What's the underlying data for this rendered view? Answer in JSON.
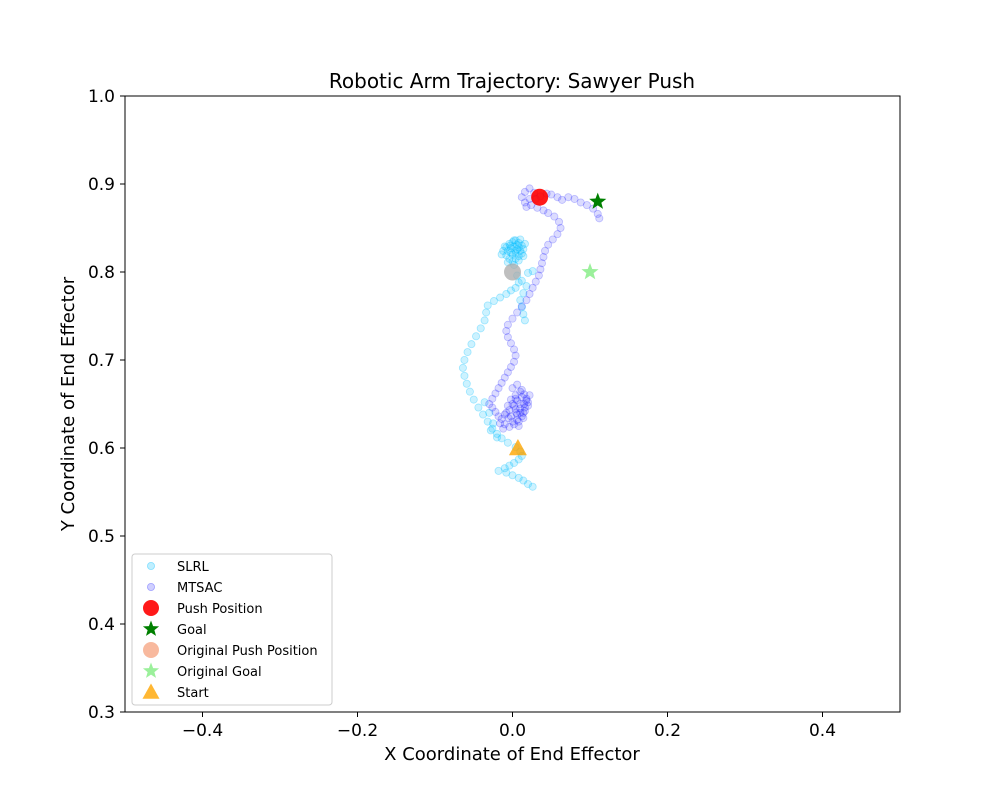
{
  "chart_data": {
    "type": "scatter",
    "title": "Robotic Arm Trajectory: Sawyer Push",
    "xlabel": "X Coordinate of End Effector",
    "ylabel": "Y Coordinate of End Effector",
    "xlim": [
      -0.5,
      0.5
    ],
    "ylim": [
      0.3,
      1.0
    ],
    "xticks": [
      -0.4,
      -0.2,
      0.0,
      0.2,
      0.4
    ],
    "xtick_labels": [
      "−0.4",
      "−0.2",
      "0.0",
      "0.2",
      "0.4"
    ],
    "yticks": [
      0.3,
      0.4,
      0.5,
      0.6,
      0.7,
      0.8,
      0.9,
      1.0
    ],
    "ytick_labels": [
      "0.3",
      "0.4",
      "0.5",
      "0.6",
      "0.7",
      "0.8",
      "0.9",
      "1.0"
    ],
    "grid": false,
    "legend_position": "lower-left",
    "series": [
      {
        "name": "SLRL",
        "marker": "circle",
        "color": "#00bfff",
        "alpha": 0.2,
        "points": [
          [
            0.026,
            0.556
          ],
          [
            0.02,
            0.559
          ],
          [
            0.014,
            0.563
          ],
          [
            0.008,
            0.566
          ],
          [
            0.0,
            0.569
          ],
          [
            -0.008,
            0.572
          ],
          [
            -0.018,
            0.574
          ],
          [
            -0.01,
            0.577
          ],
          [
            -0.004,
            0.58
          ],
          [
            0.002,
            0.583
          ],
          [
            0.008,
            0.587
          ],
          [
            0.012,
            0.591
          ],
          [
            0.01,
            0.596
          ],
          [
            0.004,
            0.601
          ],
          [
            -0.006,
            0.606
          ],
          [
            -0.014,
            0.611
          ],
          [
            -0.02,
            0.616
          ],
          [
            -0.026,
            0.622
          ],
          [
            -0.032,
            0.63
          ],
          [
            -0.038,
            0.638
          ],
          [
            -0.044,
            0.646
          ],
          [
            -0.05,
            0.655
          ],
          [
            -0.055,
            0.664
          ],
          [
            -0.059,
            0.673
          ],
          [
            -0.062,
            0.682
          ],
          [
            -0.064,
            0.691
          ],
          [
            -0.062,
            0.7
          ],
          [
            -0.058,
            0.709
          ],
          [
            -0.053,
            0.718
          ],
          [
            -0.047,
            0.727
          ],
          [
            -0.041,
            0.736
          ],
          [
            -0.036,
            0.745
          ],
          [
            -0.034,
            0.754
          ],
          [
            -0.032,
            0.762
          ],
          [
            -0.024,
            0.767
          ],
          [
            -0.016,
            0.771
          ],
          [
            -0.008,
            0.775
          ],
          [
            -0.002,
            0.779
          ],
          [
            0.004,
            0.782
          ],
          [
            0.008,
            0.788
          ],
          [
            0.006,
            0.796
          ],
          [
            0.012,
            0.79
          ],
          [
            0.018,
            0.784
          ],
          [
            0.014,
            0.776
          ],
          [
            0.01,
            0.768
          ],
          [
            0.012,
            0.76
          ],
          [
            0.014,
            0.752
          ],
          [
            0.016,
            0.745
          ],
          [
            0.02,
            0.799
          ],
          [
            0.026,
            0.801
          ],
          [
            -0.012,
            0.824
          ],
          [
            -0.008,
            0.828
          ],
          [
            -0.004,
            0.832
          ],
          [
            0.0,
            0.834
          ],
          [
            0.004,
            0.836
          ],
          [
            0.008,
            0.833
          ],
          [
            0.012,
            0.83
          ],
          [
            0.014,
            0.826
          ],
          [
            0.012,
            0.821
          ],
          [
            0.008,
            0.818
          ],
          [
            0.004,
            0.815
          ],
          [
            0.0,
            0.812
          ],
          [
            -0.004,
            0.815
          ],
          [
            -0.008,
            0.819
          ],
          [
            -0.006,
            0.824
          ],
          [
            -0.002,
            0.827
          ],
          [
            0.002,
            0.829
          ],
          [
            0.006,
            0.826
          ],
          [
            0.004,
            0.821
          ],
          [
            0.0,
            0.82
          ],
          [
            -0.003,
            0.83
          ],
          [
            0.006,
            0.831
          ],
          [
            0.01,
            0.824
          ],
          [
            -0.01,
            0.829
          ],
          [
            0.002,
            0.836
          ],
          [
            0.016,
            0.832
          ],
          [
            0.01,
            0.837
          ],
          [
            -0.006,
            0.811
          ],
          [
            0.002,
            0.808
          ],
          [
            0.008,
            0.813
          ],
          [
            -0.014,
            0.82
          ],
          [
            0.014,
            0.818
          ],
          [
            0.004,
            0.824
          ],
          [
            -0.002,
            0.822
          ],
          [
            0.008,
            0.828
          ],
          [
            -0.025,
            0.628
          ],
          [
            -0.028,
            0.62
          ],
          [
            -0.02,
            0.612
          ],
          [
            -0.03,
            0.64
          ],
          [
            -0.036,
            0.652
          ]
        ]
      },
      {
        "name": "MTSAC",
        "marker": "circle",
        "color": "#0000ff",
        "alpha": 0.14,
        "points": [
          [
            0.005,
            0.64
          ],
          [
            0.01,
            0.645
          ],
          [
            0.015,
            0.65
          ],
          [
            0.018,
            0.656
          ],
          [
            0.015,
            0.661
          ],
          [
            0.01,
            0.664
          ],
          [
            0.004,
            0.66
          ],
          [
            -0.002,
            0.655
          ],
          [
            -0.006,
            0.648
          ],
          [
            -0.008,
            0.64
          ],
          [
            -0.005,
            0.634
          ],
          [
            0.0,
            0.63
          ],
          [
            0.006,
            0.632
          ],
          [
            0.012,
            0.636
          ],
          [
            0.016,
            0.642
          ],
          [
            0.02,
            0.648
          ],
          [
            0.018,
            0.654
          ],
          [
            0.012,
            0.658
          ],
          [
            0.006,
            0.654
          ],
          [
            0.002,
            0.648
          ],
          [
            -0.004,
            0.643
          ],
          [
            -0.01,
            0.638
          ],
          [
            -0.014,
            0.633
          ],
          [
            -0.01,
            0.627
          ],
          [
            -0.004,
            0.624
          ],
          [
            0.002,
            0.627
          ],
          [
            0.008,
            0.63
          ],
          [
            0.014,
            0.634
          ],
          [
            0.01,
            0.64
          ],
          [
            0.004,
            0.644
          ],
          [
            0.0,
            0.65
          ],
          [
            0.004,
            0.656
          ],
          [
            0.01,
            0.65
          ],
          [
            0.016,
            0.646
          ],
          [
            0.008,
            0.625
          ],
          [
            -0.012,
            0.622
          ],
          [
            -0.016,
            0.628
          ],
          [
            0.022,
            0.66
          ],
          [
            0.02,
            0.652
          ],
          [
            0.0,
            0.668
          ],
          [
            0.006,
            0.672
          ],
          [
            0.012,
            0.666
          ],
          [
            -0.002,
            0.636
          ],
          [
            0.006,
            0.638
          ],
          [
            0.014,
            0.64
          ],
          [
            -0.018,
            0.636
          ],
          [
            -0.022,
            0.641
          ],
          [
            -0.026,
            0.646
          ],
          [
            -0.03,
            0.65
          ],
          [
            -0.026,
            0.656
          ],
          [
            -0.022,
            0.662
          ],
          [
            -0.018,
            0.668
          ],
          [
            -0.014,
            0.674
          ],
          [
            -0.01,
            0.68
          ],
          [
            -0.006,
            0.686
          ],
          [
            -0.002,
            0.692
          ],
          [
            0.002,
            0.698
          ],
          [
            0.004,
            0.705
          ],
          [
            0.002,
            0.712
          ],
          [
            -0.002,
            0.719
          ],
          [
            -0.006,
            0.726
          ],
          [
            -0.008,
            0.733
          ],
          [
            -0.006,
            0.74
          ],
          [
            0.0,
            0.747
          ],
          [
            0.006,
            0.754
          ],
          [
            0.012,
            0.761
          ],
          [
            0.018,
            0.768
          ],
          [
            0.022,
            0.775
          ],
          [
            0.026,
            0.782
          ],
          [
            0.03,
            0.789
          ],
          [
            0.034,
            0.796
          ],
          [
            0.036,
            0.803
          ],
          [
            0.038,
            0.81
          ],
          [
            0.04,
            0.817
          ],
          [
            0.042,
            0.824
          ],
          [
            0.046,
            0.831
          ],
          [
            0.052,
            0.837
          ],
          [
            0.058,
            0.843
          ],
          [
            0.062,
            0.85
          ],
          [
            0.06,
            0.857
          ],
          [
            0.054,
            0.863
          ],
          [
            0.046,
            0.867
          ],
          [
            0.04,
            0.87
          ],
          [
            0.032,
            0.873
          ],
          [
            0.024,
            0.876
          ],
          [
            0.016,
            0.879
          ],
          [
            0.012,
            0.885
          ],
          [
            0.016,
            0.891
          ],
          [
            0.022,
            0.895
          ],
          [
            0.028,
            0.89
          ],
          [
            0.036,
            0.886
          ],
          [
            0.044,
            0.889
          ],
          [
            0.05,
            0.888
          ],
          [
            0.058,
            0.885
          ],
          [
            0.064,
            0.882
          ],
          [
            0.072,
            0.885
          ],
          [
            0.08,
            0.883
          ],
          [
            0.088,
            0.879
          ],
          [
            0.096,
            0.876
          ],
          [
            0.104,
            0.872
          ],
          [
            0.11,
            0.866
          ],
          [
            0.112,
            0.861
          ],
          [
            0.03,
            0.883
          ],
          [
            0.022,
            0.883
          ],
          [
            0.018,
            0.874
          ]
        ]
      }
    ],
    "markers": [
      {
        "name": "Push Position",
        "shape": "circle",
        "color": "#ff0000",
        "alpha": 0.9,
        "x": 0.035,
        "y": 0.885
      },
      {
        "name": "Goal",
        "shape": "star",
        "color": "#008000",
        "alpha": 1.0,
        "x": 0.11,
        "y": 0.88
      },
      {
        "name": "Original Push Position",
        "shape": "circle",
        "color": "#a9a9a9",
        "legend_color": "#f5a27e",
        "alpha": 0.75,
        "x": 0.0,
        "y": 0.8
      },
      {
        "name": "Original Goal",
        "shape": "star",
        "color": "#90ee90",
        "alpha": 0.9,
        "x": 0.1,
        "y": 0.8
      },
      {
        "name": "Start",
        "shape": "triangle",
        "color": "#ffa500",
        "alpha": 0.8,
        "x": 0.007,
        "y": 0.6
      }
    ]
  }
}
